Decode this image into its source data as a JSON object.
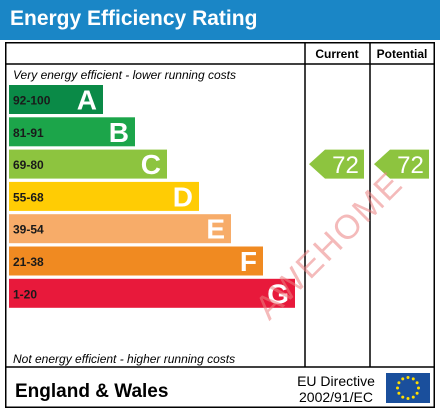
{
  "header": {
    "title": "Energy Efficiency Rating"
  },
  "columns": {
    "current": "Current",
    "potential": "Potential"
  },
  "notes": {
    "top": "Very energy efficient - lower running costs",
    "bottom": "Not energy efficient - higher running costs"
  },
  "footer": {
    "region": "England & Wales",
    "directive_line1": "EU Directive",
    "directive_line2": "2002/91/EC"
  },
  "watermark": "AWEHOME",
  "chart_data": {
    "type": "bar",
    "categories": [
      "A",
      "B",
      "C",
      "D",
      "E",
      "F",
      "G"
    ],
    "ranges": [
      "92-100",
      "81-91",
      "69-80",
      "55-68",
      "39-54",
      "21-38",
      "1-20"
    ],
    "colors": [
      "#0a8a47",
      "#1ca54a",
      "#8dc43f",
      "#ffcc04",
      "#f7ac69",
      "#f08a21",
      "#e8193b"
    ],
    "current": {
      "value": 72,
      "band": "C"
    },
    "potential": {
      "value": 72,
      "band": "C"
    },
    "indicator_color": "#8dc43f"
  }
}
